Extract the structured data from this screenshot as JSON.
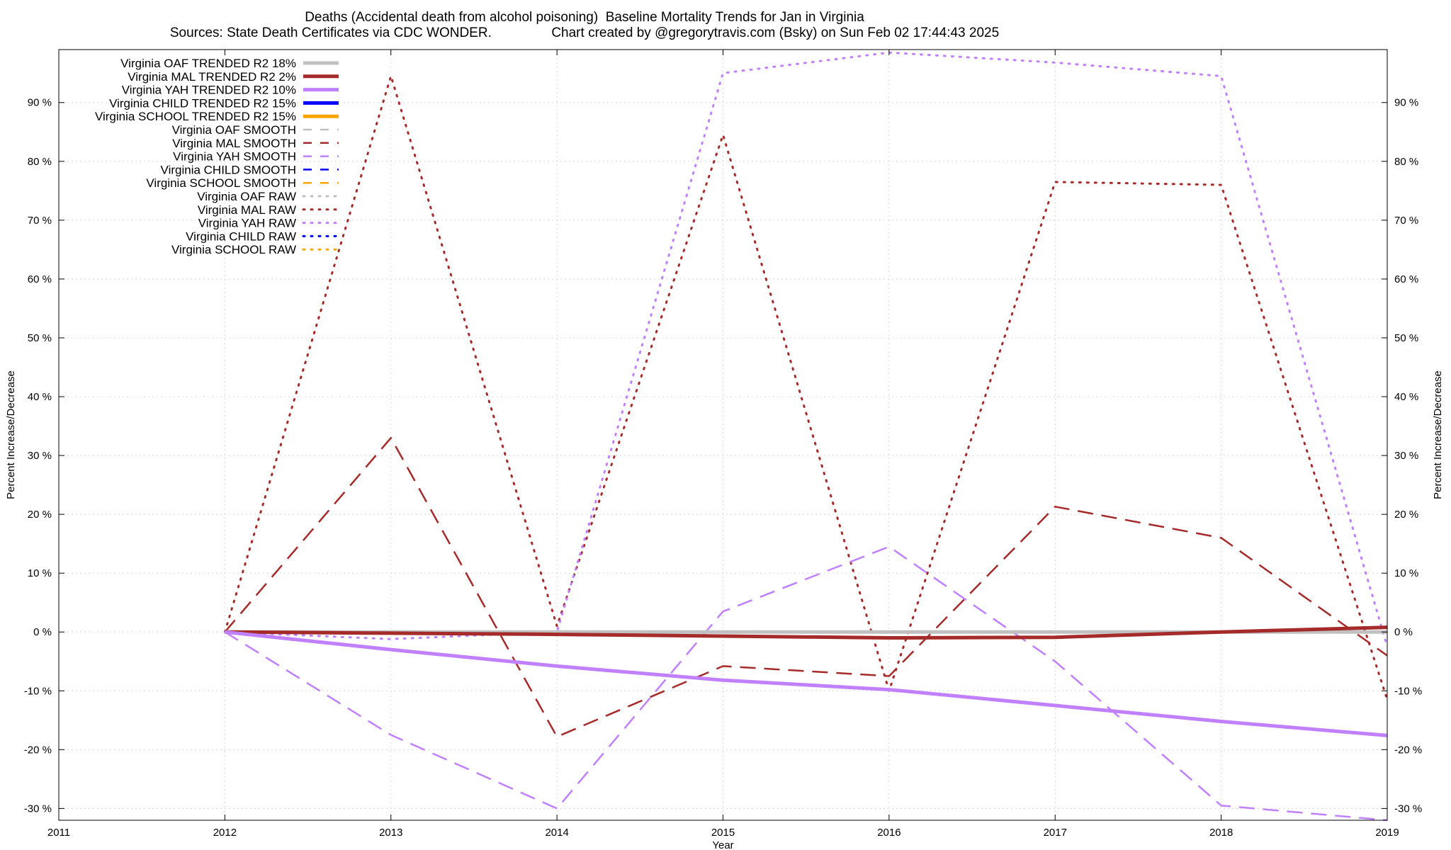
{
  "chart_data": {
    "type": "line",
    "title": "Deaths (Accidental death from alcohol poisoning)  Baseline Mortality Trends for Jan in Virginia",
    "subtitle_left": "Sources: State Death Certificates via CDC WONDER.",
    "subtitle_right": "Chart created by @gregorytravis.com (Bsky) on Sun Feb 02 17:44:43 2025",
    "xlabel": "Year",
    "ylabel_left": "Percent Increase/Decrease",
    "ylabel_right": "Percent Increase/Decrease",
    "xlim": [
      2011,
      2019
    ],
    "ylim": [
      -32,
      99
    ],
    "x_ticks": [
      "2011",
      "2012",
      "2013",
      "2014",
      "2015",
      "2016",
      "2017",
      "2018",
      "2019"
    ],
    "y_ticks": [
      -30,
      -20,
      -10,
      0,
      10,
      20,
      30,
      40,
      50,
      60,
      70,
      80,
      90
    ],
    "y_tick_labels": [
      "-30 %",
      "-20 %",
      "-10 %",
      "0 %",
      "10 %",
      "20 %",
      "30 %",
      "40 %",
      "50 %",
      "60 %",
      "70 %",
      "80 %",
      "90 %"
    ],
    "grid": true,
    "legend_position": "top-left",
    "series": [
      {
        "name": "Virginia OAF TRENDED R2  18%",
        "color": "#c0c0c0",
        "style": "trend",
        "x": [
          2012,
          2019
        ],
        "y": [
          0,
          0
        ]
      },
      {
        "name": "Virginia MAL TRENDED R2   2%",
        "color": "#a52a2a",
        "style": "trend",
        "x": [
          2012,
          2013,
          2014,
          2015,
          2016,
          2017,
          2018,
          2019
        ],
        "y": [
          0,
          -0.2,
          -0.4,
          -0.7,
          -1.0,
          -0.9,
          0,
          0.8
        ]
      },
      {
        "name": "Virginia YAH TRENDED R2  10%",
        "color": "#c080ff",
        "style": "trend",
        "x": [
          2012,
          2013,
          2014,
          2015,
          2016,
          2017,
          2018,
          2019
        ],
        "y": [
          0,
          -3,
          -5.8,
          -8.2,
          -9.8,
          -12.5,
          -15.2,
          -17.6
        ]
      },
      {
        "name": "Virginia CHILD TRENDED R2  15%",
        "color": "#0000ff",
        "style": "trend",
        "x": [],
        "y": []
      },
      {
        "name": "Virginia SCHOOL TRENDED R2  15%",
        "color": "#ffa500",
        "style": "trend",
        "x": [],
        "y": []
      },
      {
        "name": "Virginia OAF SMOOTH",
        "color": "#c0c0c0",
        "style": "smooth",
        "x": [],
        "y": []
      },
      {
        "name": "Virginia MAL SMOOTH",
        "color": "#a52a2a",
        "style": "smooth",
        "x": [
          2012,
          2013,
          2014,
          2015,
          2016,
          2017,
          2018,
          2019
        ],
        "y": [
          0,
          33,
          -17.8,
          -5.8,
          -7.5,
          21.3,
          16,
          -4
        ]
      },
      {
        "name": "Virginia YAH SMOOTH",
        "color": "#c080ff",
        "style": "smooth",
        "x": [
          2012,
          2013,
          2014,
          2015,
          2016,
          2017,
          2018,
          2019
        ],
        "y": [
          0,
          -17.5,
          -30,
          3.5,
          14.5,
          -5,
          -29.5,
          -32
        ]
      },
      {
        "name": "Virginia CHILD SMOOTH",
        "color": "#0000ff",
        "style": "smooth",
        "x": [],
        "y": []
      },
      {
        "name": "Virginia SCHOOL SMOOTH",
        "color": "#ffa500",
        "style": "smooth",
        "x": [],
        "y": []
      },
      {
        "name": "Virginia OAF RAW",
        "color": "#c0c0c0",
        "style": "raw",
        "x": [],
        "y": []
      },
      {
        "name": "Virginia MAL RAW",
        "color": "#a52a2a",
        "style": "raw",
        "x": [
          2012,
          2013,
          2014,
          2015,
          2016,
          2017,
          2018,
          2019
        ],
        "y": [
          0,
          94.5,
          1,
          84.5,
          -10,
          76.5,
          76,
          -11.5
        ]
      },
      {
        "name": "Virginia YAH RAW",
        "color": "#c080ff",
        "style": "raw",
        "x": [
          2012,
          2013,
          2014,
          2015,
          2016,
          2017,
          2018,
          2019
        ],
        "y": [
          0,
          -1.2,
          0,
          95,
          98.5,
          96.8,
          94.5,
          -2.5
        ]
      },
      {
        "name": "Virginia CHILD RAW",
        "color": "#0000ff",
        "style": "raw",
        "x": [],
        "y": []
      },
      {
        "name": "Virginia SCHOOL RAW",
        "color": "#ffa500",
        "style": "raw",
        "x": [],
        "y": []
      }
    ]
  }
}
